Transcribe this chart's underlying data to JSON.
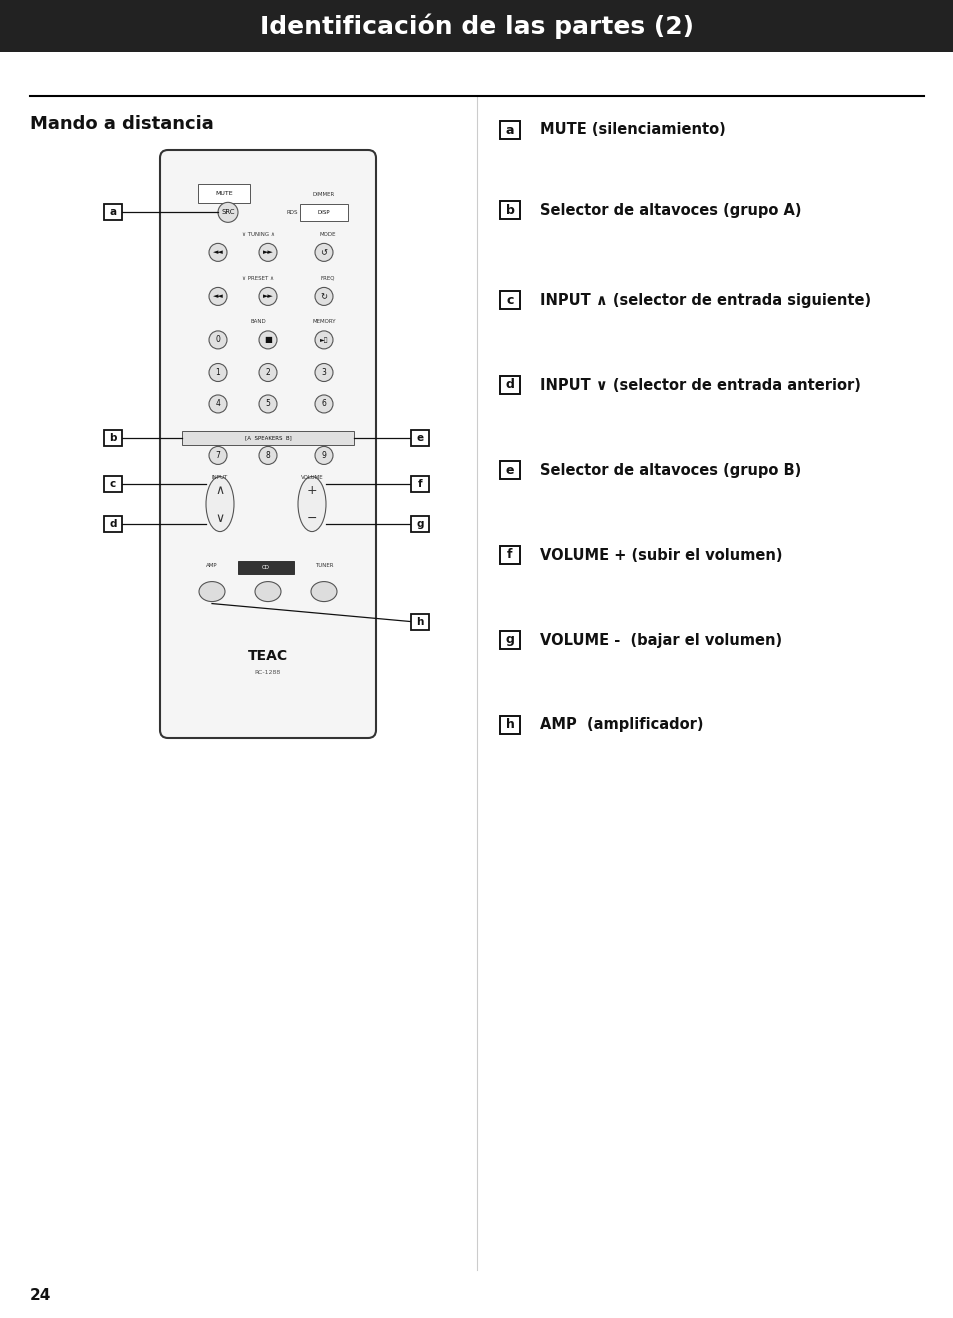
{
  "title": "Identificación de las partes (2)",
  "title_bg": "#222222",
  "title_color": "#ffffff",
  "section_title": "Mando a distancia",
  "page_number": "24",
  "bg_color": "#ffffff",
  "labels": [
    "a",
    "b",
    "c",
    "d",
    "e",
    "f",
    "g",
    "h"
  ],
  "descriptions": [
    "MUTE (silenciamiento)",
    "Selector de altavoces (grupo A)",
    "INPUT ∧ (selector de entrada siguiente)",
    "INPUT ∨ (selector de entrada anterior)",
    "Selector de altavoces (grupo B)",
    "VOLUME + (subir el volumen)",
    "VOLUME -  (bajar el volumen)",
    "AMP  (amplificador)"
  ]
}
